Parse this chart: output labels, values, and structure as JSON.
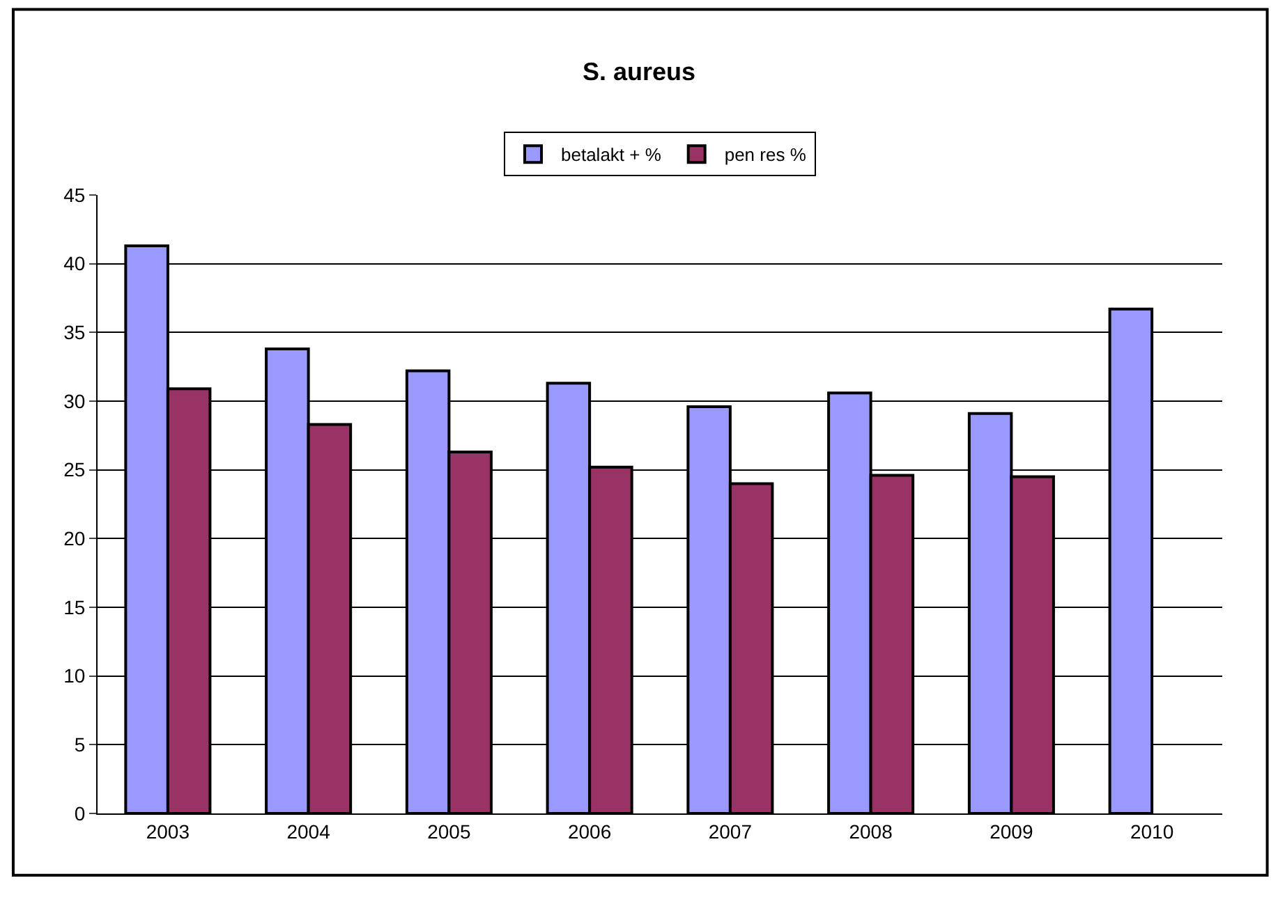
{
  "chart_data": {
    "type": "bar",
    "title": "S. aureus",
    "categories": [
      "2003",
      "2004",
      "2005",
      "2006",
      "2007",
      "2008",
      "2009",
      "2010"
    ],
    "series": [
      {
        "name": "betalakt + %",
        "color": "#9999ff",
        "values": [
          41.3,
          33.8,
          32.2,
          31.3,
          29.6,
          30.6,
          29.1,
          36.7
        ]
      },
      {
        "name": "pen res %",
        "color": "#993366",
        "values": [
          30.9,
          28.3,
          26.3,
          25.2,
          24.0,
          24.6,
          24.5,
          null
        ]
      }
    ],
    "ylim": [
      0,
      45
    ],
    "yticks": [
      0,
      5,
      10,
      15,
      20,
      25,
      30,
      35,
      40,
      45
    ],
    "grid": "y",
    "legend": "top"
  }
}
